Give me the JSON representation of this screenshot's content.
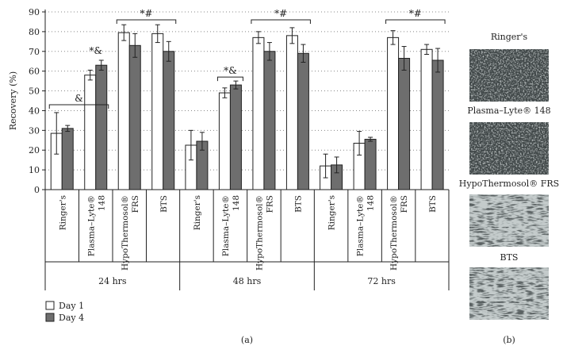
{
  "chart_data": {
    "type": "bar",
    "ylabel": "Recovery (%)",
    "ylim": [
      0,
      90
    ],
    "yticks": [
      0,
      10,
      20,
      30,
      40,
      50,
      60,
      70,
      80,
      90
    ],
    "grid": "horizontal dotted",
    "groups": [
      {
        "label": "24 hrs",
        "categories": [
          {
            "lines": [
              "Ringer's"
            ],
            "day1": 28.5,
            "day1_err": 10.5,
            "day4": 31,
            "day4_err": 1.5
          },
          {
            "lines": [
              "Plasma–Lyte®",
              "148"
            ],
            "day1": 58,
            "day1_err": 2.5,
            "day4": 63,
            "day4_err": 2.5
          },
          {
            "lines": [
              "HypoThermosol®",
              "FRS"
            ],
            "day1": 79.5,
            "day1_err": 4,
            "day4": 73,
            "day4_err": 6
          },
          {
            "lines": [
              "BTS"
            ],
            "day1": 79,
            "day1_err": 4.5,
            "day4": 70,
            "day4_err": 5
          }
        ]
      },
      {
        "label": "48 hrs",
        "categories": [
          {
            "lines": [
              "Ringer's"
            ],
            "day1": 22.5,
            "day1_err": 7.5,
            "day4": 24.5,
            "day4_err": 4.5
          },
          {
            "lines": [
              "Plasma–Lyte®",
              "148"
            ],
            "day1": 49,
            "day1_err": 2.5,
            "day4": 53,
            "day4_err": 2
          },
          {
            "lines": [
              "HypoThermosol®",
              "FRS"
            ],
            "day1": 77,
            "day1_err": 3,
            "day4": 70,
            "day4_err": 4.5
          },
          {
            "lines": [
              "BTS"
            ],
            "day1": 78,
            "day1_err": 4,
            "day4": 69,
            "day4_err": 4.5
          }
        ]
      },
      {
        "label": "72 hrs",
        "categories": [
          {
            "lines": [
              "Ringer's"
            ],
            "day1": 12,
            "day1_err": 6,
            "day4": 12.5,
            "day4_err": 4
          },
          {
            "lines": [
              "Plasma–Lyte®",
              "148"
            ],
            "day1": 23.5,
            "day1_err": 6,
            "day4": 25.5,
            "day4_err": 1
          },
          {
            "lines": [
              "HypoThermosol®",
              "FRS"
            ],
            "day1": 77,
            "day1_err": 3.5,
            "day4": 66.5,
            "day4_err": 6
          },
          {
            "lines": [
              "BTS"
            ],
            "day1": 71,
            "day1_err": 2.5,
            "day4": 65.5,
            "day4_err": 6
          }
        ]
      }
    ],
    "significance": [
      {
        "label": "&",
        "from_group": 0,
        "from_cat": 0,
        "to_group": 0,
        "to_cat": 1,
        "level": 43
      },
      {
        "label": "*&",
        "from_group": 0,
        "from_cat": 1,
        "to_group": 0,
        "to_cat": 1,
        "level": 67,
        "no_bracket": true
      },
      {
        "label": "*#",
        "from_group": 0,
        "from_cat": 2,
        "to_group": 0,
        "to_cat": 3,
        "level": 86
      },
      {
        "label": "*&",
        "from_group": 1,
        "from_cat": 1,
        "to_group": 1,
        "to_cat": 1,
        "level": 57
      },
      {
        "label": "*#",
        "from_group": 1,
        "from_cat": 2,
        "to_group": 1,
        "to_cat": 3,
        "level": 86
      },
      {
        "label": "*#",
        "from_group": 2,
        "from_cat": 2,
        "to_group": 2,
        "to_cat": 3,
        "level": 86
      }
    ],
    "legend": {
      "placement": "bottom-left",
      "entries": [
        {
          "name": "Day 1",
          "color": "#ffffff"
        },
        {
          "name": "Day 4",
          "color": "#6e6e6e"
        }
      ]
    },
    "colors": {
      "day1": "#ffffff",
      "day4": "#6e6e6e",
      "stroke": "#222222"
    },
    "panel_label": "(a)"
  },
  "photos": {
    "panel_label": "(b)",
    "items": [
      {
        "title": "Ringer's",
        "texture": "dense-rounded"
      },
      {
        "title": "Plasma–Lyte® 148",
        "texture": "dense-rounded"
      },
      {
        "title": "HypoThermosol® FRS",
        "texture": "spindle"
      },
      {
        "title": "BTS",
        "texture": "spindle"
      }
    ]
  }
}
